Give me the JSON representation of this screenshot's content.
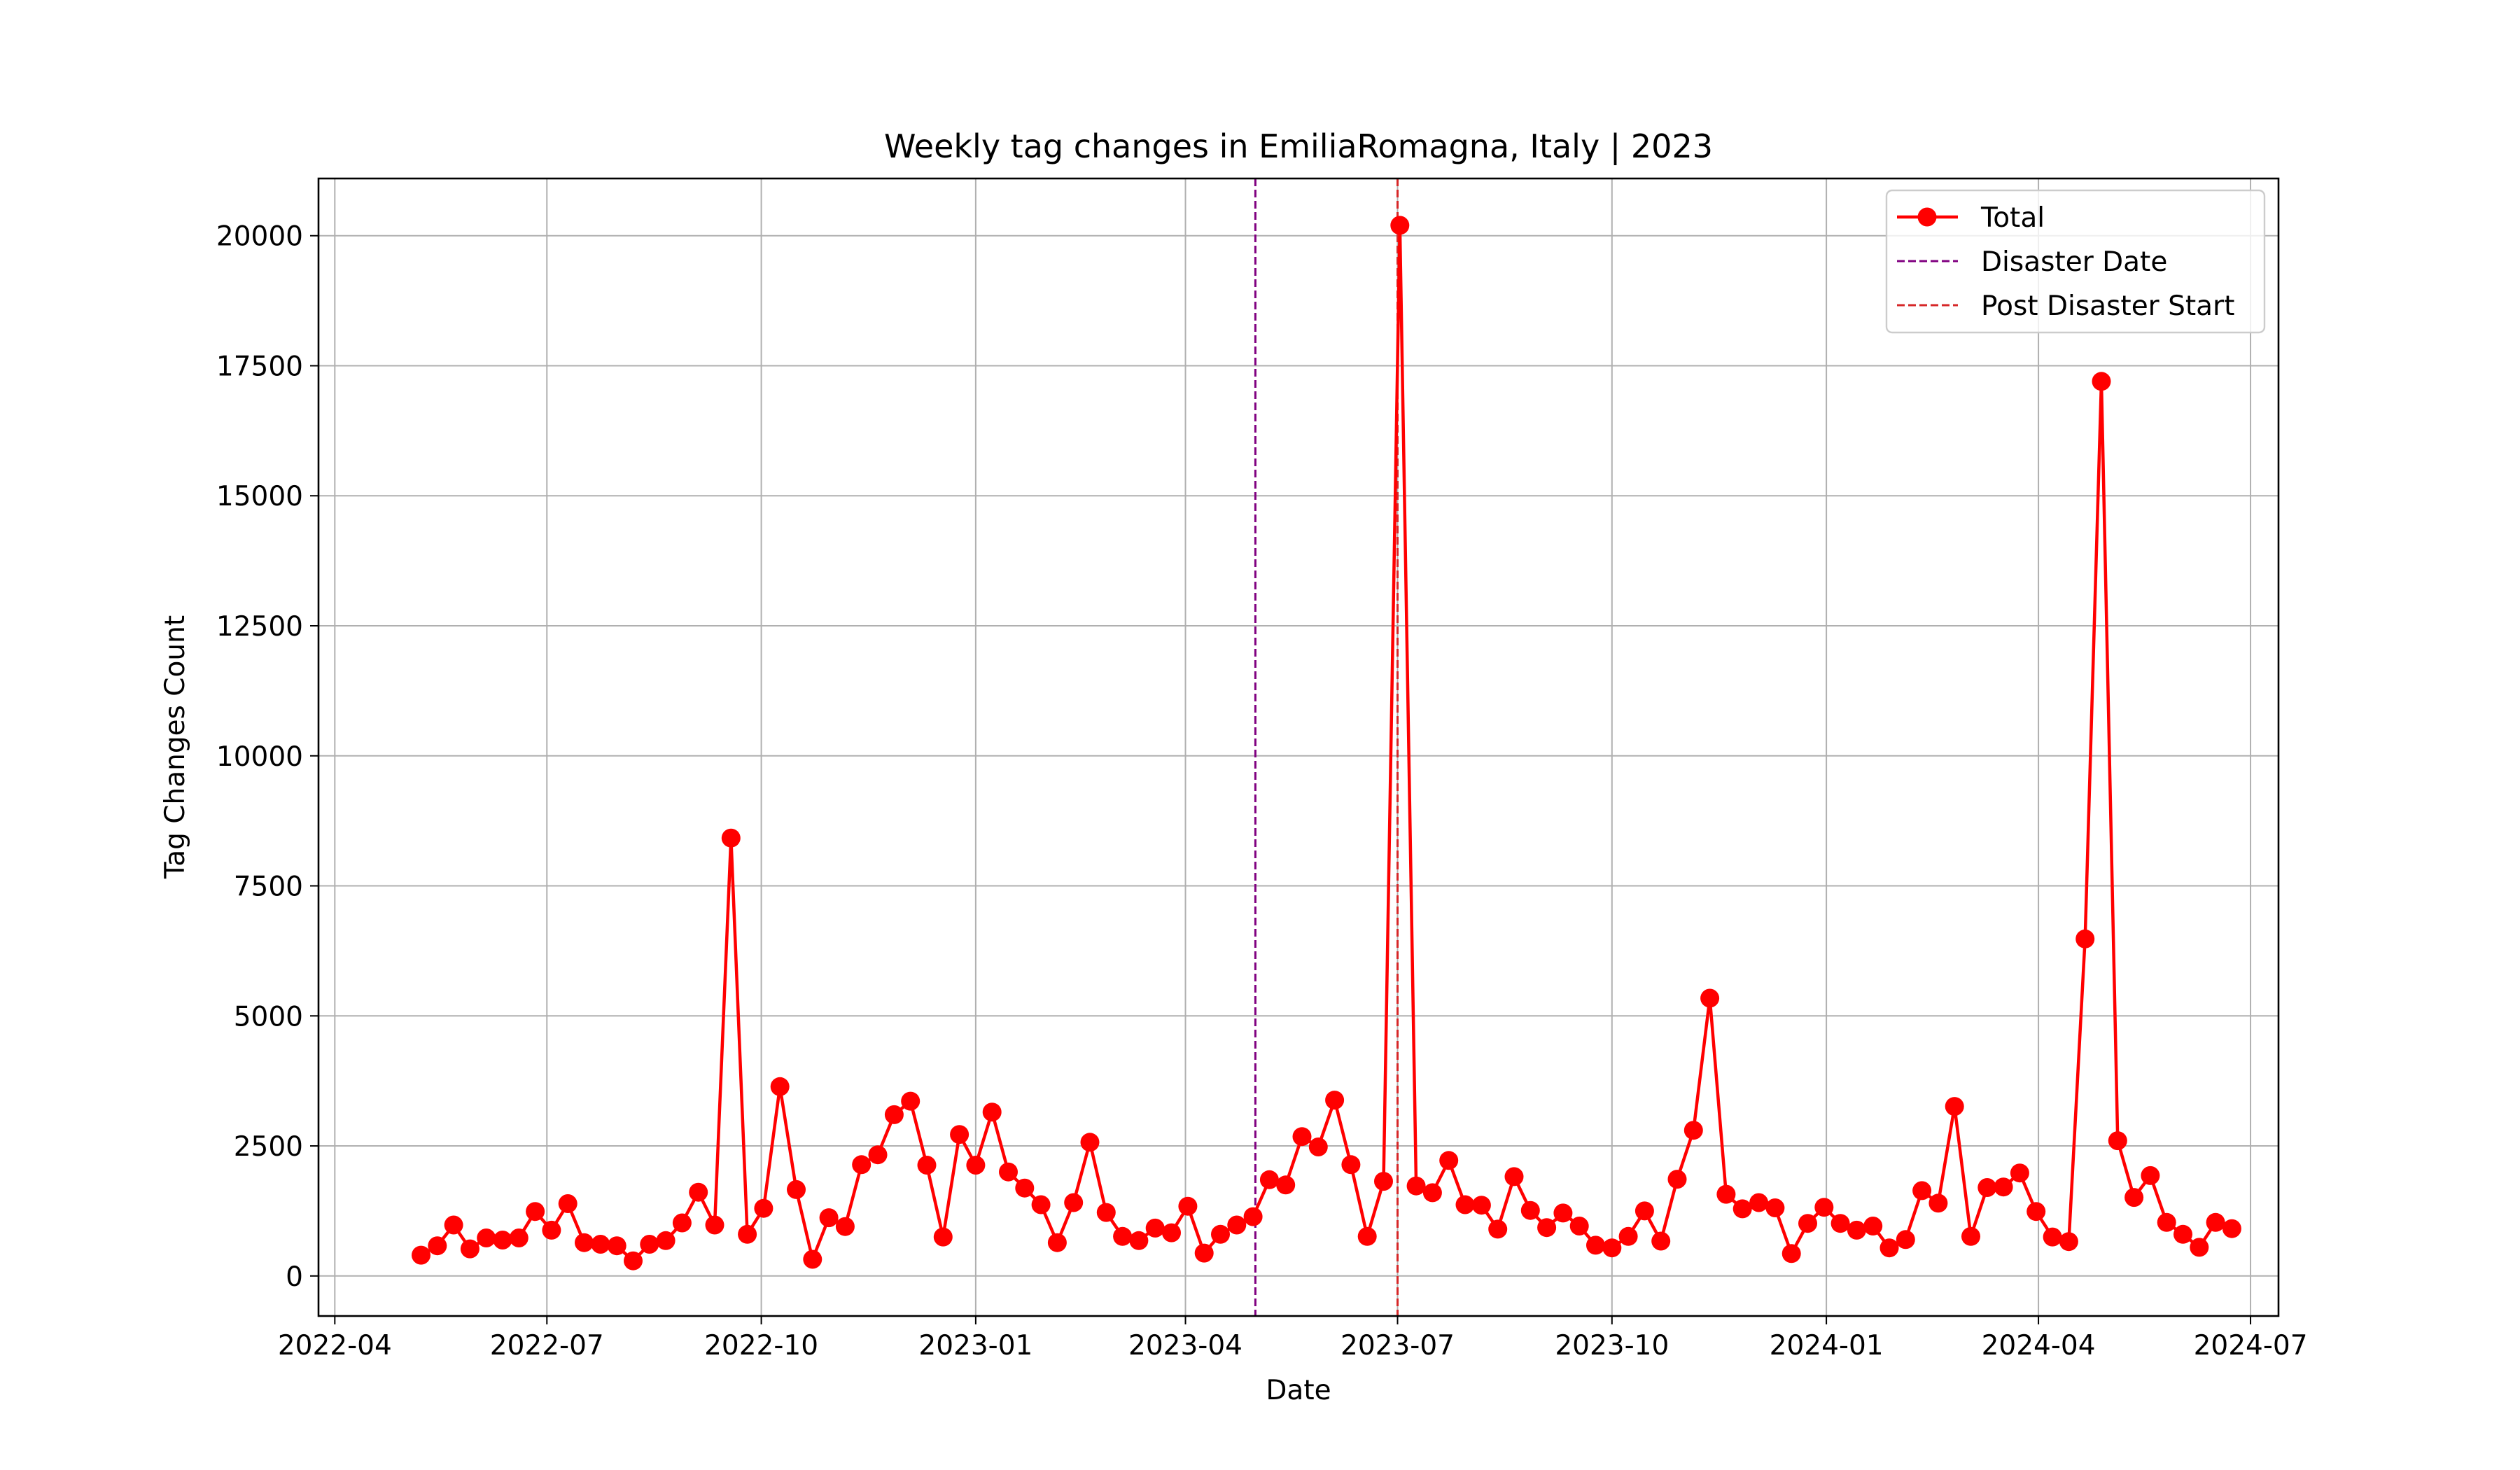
{
  "chart_data": {
    "type": "line",
    "title": "Weekly tag changes in EmiliaRomagna, Italy | 2023",
    "xlabel": "Date",
    "ylabel": "Tag Changes Count",
    "x_axis": "date",
    "x_ticks": [
      "2022-04-01",
      "2022-07-01",
      "2022-10-01",
      "2023-01-01",
      "2023-04-01",
      "2023-07-01",
      "2023-10-01",
      "2024-01-01",
      "2024-04-01",
      "2024-07-01"
    ],
    "x_tick_labels": [
      "2022-04",
      "2022-07",
      "2022-10",
      "2023-01",
      "2023-04",
      "2023-07",
      "2023-10",
      "2024-01",
      "2024-04",
      "2024-07"
    ],
    "xlim": [
      "2022-03-25",
      "2024-07-13"
    ],
    "y_ticks": [
      0,
      2500,
      5000,
      7500,
      10000,
      12500,
      15000,
      17500,
      20000
    ],
    "ylim": [
      -770,
      21100
    ],
    "grid": true,
    "legend_position": "top-right",
    "series": [
      {
        "name": "Total",
        "color": "#ff0000",
        "marker": "circle",
        "x_start": "2022-05-08",
        "x_step_days": 7,
        "values": [
          400,
          580,
          980,
          520,
          730,
          690,
          730,
          1240,
          880,
          1390,
          640,
          610,
          580,
          290,
          610,
          680,
          1020,
          1610,
          980,
          8420,
          800,
          1300,
          3640,
          1660,
          320,
          1120,
          950,
          2140,
          2330,
          3100,
          3360,
          2130,
          750,
          2720,
          2130,
          3150,
          2000,
          1690,
          1370,
          640,
          1410,
          2570,
          1220,
          760,
          680,
          920,
          830,
          1340,
          440,
          800,
          980,
          1140,
          1850,
          1750,
          2680,
          2480,
          3380,
          2140,
          760,
          1820,
          20200,
          1730,
          1600,
          2220,
          1370,
          1360,
          900,
          1910,
          1260,
          930,
          1210,
          960,
          590,
          540,
          760,
          1250,
          670,
          1860,
          2800,
          5340,
          1570,
          1290,
          1410,
          1310,
          430,
          1010,
          1320,
          1010,
          880,
          960,
          540,
          700,
          1640,
          1400,
          3260,
          760,
          1700,
          1710,
          1980,
          1240,
          750,
          660,
          6480,
          17200,
          2600,
          1510,
          1930,
          1030,
          800,
          550,
          1030,
          910
        ]
      }
    ],
    "reference_lines": [
      {
        "name": "Disaster Date",
        "x": "2023-05-01",
        "color": "#800080",
        "style": "dashed"
      },
      {
        "name": "Post Disaster Start",
        "x": "2023-07-01",
        "color": "#d62728",
        "style": "dashed"
      }
    ]
  }
}
